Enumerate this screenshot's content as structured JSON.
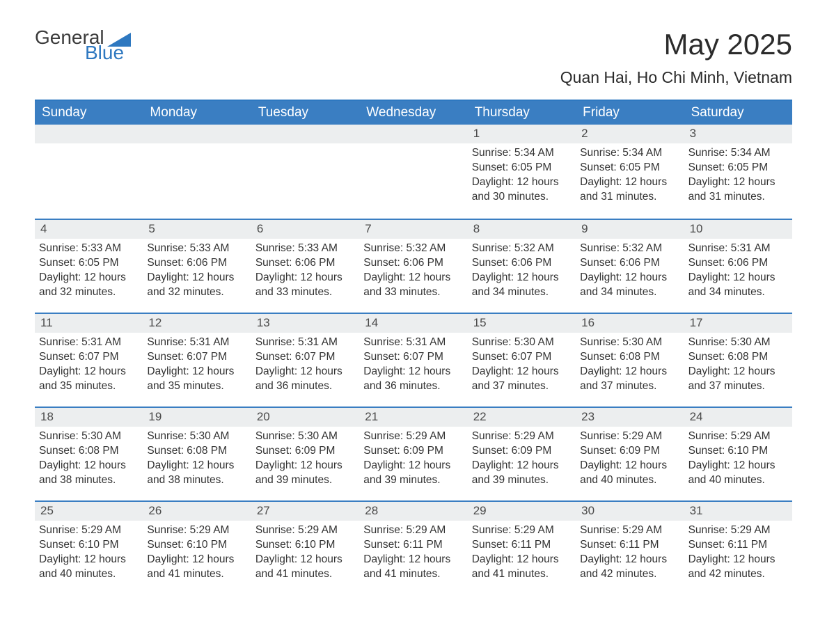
{
  "brand": {
    "word1": "General",
    "word2": "Blue",
    "accent_color": "#2e78c0",
    "text_color": "#3b3b3b"
  },
  "header": {
    "month_title": "May 2025",
    "location": "Quan Hai, Ho Chi Minh, Vietnam"
  },
  "colors": {
    "header_bg": "#3a7ec2",
    "header_text": "#ffffff",
    "row_border": "#3a7ec2",
    "daynum_bg": "#eceeef",
    "body_text": "#333333",
    "page_bg": "#ffffff"
  },
  "calendar": {
    "day_names": [
      "Sunday",
      "Monday",
      "Tuesday",
      "Wednesday",
      "Thursday",
      "Friday",
      "Saturday"
    ],
    "weeks": [
      [
        {
          "day": "",
          "sunrise": "",
          "sunset": "",
          "daylight": ""
        },
        {
          "day": "",
          "sunrise": "",
          "sunset": "",
          "daylight": ""
        },
        {
          "day": "",
          "sunrise": "",
          "sunset": "",
          "daylight": ""
        },
        {
          "day": "",
          "sunrise": "",
          "sunset": "",
          "daylight": ""
        },
        {
          "day": "1",
          "sunrise": "Sunrise: 5:34 AM",
          "sunset": "Sunset: 6:05 PM",
          "daylight": "Daylight: 12 hours and 30 minutes."
        },
        {
          "day": "2",
          "sunrise": "Sunrise: 5:34 AM",
          "sunset": "Sunset: 6:05 PM",
          "daylight": "Daylight: 12 hours and 31 minutes."
        },
        {
          "day": "3",
          "sunrise": "Sunrise: 5:34 AM",
          "sunset": "Sunset: 6:05 PM",
          "daylight": "Daylight: 12 hours and 31 minutes."
        }
      ],
      [
        {
          "day": "4",
          "sunrise": "Sunrise: 5:33 AM",
          "sunset": "Sunset: 6:05 PM",
          "daylight": "Daylight: 12 hours and 32 minutes."
        },
        {
          "day": "5",
          "sunrise": "Sunrise: 5:33 AM",
          "sunset": "Sunset: 6:06 PM",
          "daylight": "Daylight: 12 hours and 32 minutes."
        },
        {
          "day": "6",
          "sunrise": "Sunrise: 5:33 AM",
          "sunset": "Sunset: 6:06 PM",
          "daylight": "Daylight: 12 hours and 33 minutes."
        },
        {
          "day": "7",
          "sunrise": "Sunrise: 5:32 AM",
          "sunset": "Sunset: 6:06 PM",
          "daylight": "Daylight: 12 hours and 33 minutes."
        },
        {
          "day": "8",
          "sunrise": "Sunrise: 5:32 AM",
          "sunset": "Sunset: 6:06 PM",
          "daylight": "Daylight: 12 hours and 34 minutes."
        },
        {
          "day": "9",
          "sunrise": "Sunrise: 5:32 AM",
          "sunset": "Sunset: 6:06 PM",
          "daylight": "Daylight: 12 hours and 34 minutes."
        },
        {
          "day": "10",
          "sunrise": "Sunrise: 5:31 AM",
          "sunset": "Sunset: 6:06 PM",
          "daylight": "Daylight: 12 hours and 34 minutes."
        }
      ],
      [
        {
          "day": "11",
          "sunrise": "Sunrise: 5:31 AM",
          "sunset": "Sunset: 6:07 PM",
          "daylight": "Daylight: 12 hours and 35 minutes."
        },
        {
          "day": "12",
          "sunrise": "Sunrise: 5:31 AM",
          "sunset": "Sunset: 6:07 PM",
          "daylight": "Daylight: 12 hours and 35 minutes."
        },
        {
          "day": "13",
          "sunrise": "Sunrise: 5:31 AM",
          "sunset": "Sunset: 6:07 PM",
          "daylight": "Daylight: 12 hours and 36 minutes."
        },
        {
          "day": "14",
          "sunrise": "Sunrise: 5:31 AM",
          "sunset": "Sunset: 6:07 PM",
          "daylight": "Daylight: 12 hours and 36 minutes."
        },
        {
          "day": "15",
          "sunrise": "Sunrise: 5:30 AM",
          "sunset": "Sunset: 6:07 PM",
          "daylight": "Daylight: 12 hours and 37 minutes."
        },
        {
          "day": "16",
          "sunrise": "Sunrise: 5:30 AM",
          "sunset": "Sunset: 6:08 PM",
          "daylight": "Daylight: 12 hours and 37 minutes."
        },
        {
          "day": "17",
          "sunrise": "Sunrise: 5:30 AM",
          "sunset": "Sunset: 6:08 PM",
          "daylight": "Daylight: 12 hours and 37 minutes."
        }
      ],
      [
        {
          "day": "18",
          "sunrise": "Sunrise: 5:30 AM",
          "sunset": "Sunset: 6:08 PM",
          "daylight": "Daylight: 12 hours and 38 minutes."
        },
        {
          "day": "19",
          "sunrise": "Sunrise: 5:30 AM",
          "sunset": "Sunset: 6:08 PM",
          "daylight": "Daylight: 12 hours and 38 minutes."
        },
        {
          "day": "20",
          "sunrise": "Sunrise: 5:30 AM",
          "sunset": "Sunset: 6:09 PM",
          "daylight": "Daylight: 12 hours and 39 minutes."
        },
        {
          "day": "21",
          "sunrise": "Sunrise: 5:29 AM",
          "sunset": "Sunset: 6:09 PM",
          "daylight": "Daylight: 12 hours and 39 minutes."
        },
        {
          "day": "22",
          "sunrise": "Sunrise: 5:29 AM",
          "sunset": "Sunset: 6:09 PM",
          "daylight": "Daylight: 12 hours and 39 minutes."
        },
        {
          "day": "23",
          "sunrise": "Sunrise: 5:29 AM",
          "sunset": "Sunset: 6:09 PM",
          "daylight": "Daylight: 12 hours and 40 minutes."
        },
        {
          "day": "24",
          "sunrise": "Sunrise: 5:29 AM",
          "sunset": "Sunset: 6:10 PM",
          "daylight": "Daylight: 12 hours and 40 minutes."
        }
      ],
      [
        {
          "day": "25",
          "sunrise": "Sunrise: 5:29 AM",
          "sunset": "Sunset: 6:10 PM",
          "daylight": "Daylight: 12 hours and 40 minutes."
        },
        {
          "day": "26",
          "sunrise": "Sunrise: 5:29 AM",
          "sunset": "Sunset: 6:10 PM",
          "daylight": "Daylight: 12 hours and 41 minutes."
        },
        {
          "day": "27",
          "sunrise": "Sunrise: 5:29 AM",
          "sunset": "Sunset: 6:10 PM",
          "daylight": "Daylight: 12 hours and 41 minutes."
        },
        {
          "day": "28",
          "sunrise": "Sunrise: 5:29 AM",
          "sunset": "Sunset: 6:11 PM",
          "daylight": "Daylight: 12 hours and 41 minutes."
        },
        {
          "day": "29",
          "sunrise": "Sunrise: 5:29 AM",
          "sunset": "Sunset: 6:11 PM",
          "daylight": "Daylight: 12 hours and 41 minutes."
        },
        {
          "day": "30",
          "sunrise": "Sunrise: 5:29 AM",
          "sunset": "Sunset: 6:11 PM",
          "daylight": "Daylight: 12 hours and 42 minutes."
        },
        {
          "day": "31",
          "sunrise": "Sunrise: 5:29 AM",
          "sunset": "Sunset: 6:11 PM",
          "daylight": "Daylight: 12 hours and 42 minutes."
        }
      ]
    ]
  }
}
